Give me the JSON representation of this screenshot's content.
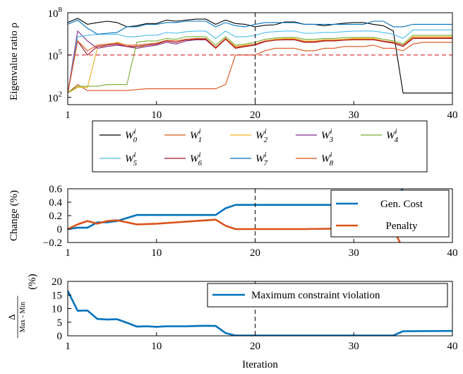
{
  "chart_data": [
    {
      "type": "line",
      "ylabel": "Eigenvalue ratio ρ",
      "yscale": "log",
      "ylim": [
        30,
        100000000
      ],
      "xlim": [
        1,
        40
      ],
      "xticks": [
        1,
        10,
        20,
        30,
        40
      ],
      "yticks": [
        {
          "value": 100,
          "base": "10",
          "exp": "2"
        },
        {
          "value": 100000,
          "base": "10",
          "exp": "5"
        },
        {
          "value": 100000000,
          "base": "10",
          "exp": "8"
        }
      ],
      "threshold": {
        "value": 100000,
        "color": "#d62728",
        "style": "dashed"
      },
      "vline": 20,
      "legend": {
        "placement": "below",
        "columns": 5
      },
      "x": [
        1,
        2,
        3,
        4,
        5,
        6,
        7,
        8,
        9,
        10,
        11,
        12,
        13,
        14,
        15,
        16,
        17,
        18,
        19,
        20,
        21,
        22,
        23,
        24,
        25,
        26,
        27,
        28,
        29,
        30,
        31,
        32,
        33,
        34,
        35,
        36,
        37,
        38,
        39,
        40
      ],
      "series": [
        {
          "name": "W",
          "sub": "0",
          "sup": "i",
          "color": "#000000",
          "values": [
            20000000.0,
            40000000.0,
            15000000.0,
            20000000.0,
            25000000.0,
            20000000.0,
            10000000.0,
            12000000.0,
            17000000.0,
            17000000.0,
            30000000.0,
            25000000.0,
            30000000.0,
            35000000.0,
            35000000.0,
            15000000.0,
            30000000.0,
            17000000.0,
            15000000.0,
            10000000.0,
            13000000.0,
            14000000.0,
            22000000.0,
            22000000.0,
            15000000.0,
            15000000.0,
            12000000.0,
            15000000.0,
            18000000.0,
            20000000.0,
            20000000.0,
            15000000.0,
            12000000.0,
            5000000.0,
            200,
            200,
            200,
            200,
            200,
            200
          ]
        },
        {
          "name": "W",
          "sub": "1",
          "sup": "i",
          "color": "#d95319",
          "values": [
            200,
            800,
            300,
            300,
            300,
            300,
            300,
            350,
            400,
            400,
            400,
            400,
            400,
            400,
            400,
            400,
            800,
            100000.0,
            100000.0,
            100000.0,
            200000.0,
            300000.0,
            300000.0,
            300000.0,
            200000.0,
            200000.0,
            300000.0,
            300000.0,
            400000.0,
            400000.0,
            400000.0,
            500000.0,
            300000.0,
            300000.0,
            200000.0,
            600000.0,
            800000.0,
            800000.0,
            800000.0,
            800000.0
          ]
        },
        {
          "name": "W",
          "sub": "2",
          "sup": "i",
          "color": "#edb120",
          "values": [
            200,
            500,
            500,
            300000.0,
            500000.0,
            800000.0,
            500000.0,
            300000.0,
            500000.0,
            600000.0,
            1000000.0,
            800000.0,
            1200000.0,
            1500000.0,
            1500000.0,
            300000.0,
            1500000.0,
            400000.0,
            500000.0,
            600000.0,
            1000000.0,
            1300000.0,
            1500000.0,
            1500000.0,
            1000000.0,
            1000000.0,
            1200000.0,
            1200000.0,
            1300000.0,
            1500000.0,
            1500000.0,
            1500000.0,
            1000000.0,
            800000.0,
            500000.0,
            2000000.0,
            2000000.0,
            2000000.0,
            2000000.0,
            2000000.0
          ]
        },
        {
          "name": "W",
          "sub": "3",
          "sup": "i",
          "color": "#7e2f8e",
          "values": [
            200,
            5000000.0,
            1000000.0,
            300000.0,
            400000.0,
            500000.0,
            400000.0,
            300000.0,
            400000.0,
            500000.0,
            800000.0,
            600000.0,
            1000000.0,
            1200000.0,
            1200000.0,
            300000.0,
            1500000.0,
            300000.0,
            400000.0,
            500000.0,
            900000.0,
            1200000.0,
            1200000.0,
            1200000.0,
            800000.0,
            800000.0,
            1000000.0,
            1000000.0,
            1200000.0,
            1300000.0,
            1300000.0,
            1300000.0,
            900000.0,
            700000.0,
            400000.0,
            1500000.0,
            1500000.0,
            1500000.0,
            1500000.0,
            1500000.0
          ]
        },
        {
          "name": "W",
          "sub": "4",
          "sup": "i",
          "color": "#77ac30",
          "values": [
            200,
            600,
            600,
            600,
            800,
            800,
            800,
            800000.0,
            1000000.0,
            1000000.0,
            1500000.0,
            1300000.0,
            2000000.0,
            2000000.0,
            2000000.0,
            500000.0,
            2000000.0,
            500000.0,
            600000.0,
            800000.0,
            1300000.0,
            1600000.0,
            1800000.0,
            1800000.0,
            1300000.0,
            1300000.0,
            1500000.0,
            1500000.0,
            1700000.0,
            1800000.0,
            1800000.0,
            1800000.0,
            1300000.0,
            1000000.0,
            600000.0,
            2500000.0,
            2500000.0,
            2500000.0,
            2500000.0,
            2500000.0
          ]
        },
        {
          "name": "W",
          "sub": "5",
          "sup": "i",
          "color": "#4dbeee",
          "values": [
            200,
            2000000.0,
            2500000.0,
            3000000.0,
            3000000.0,
            3000000.0,
            2000000.0,
            2000000.0,
            2500000.0,
            2500000.0,
            4000000.0,
            3500000.0,
            4500000.0,
            5000000.0,
            5000000.0,
            1500000.0,
            5000000.0,
            2000000.0,
            2000000.0,
            2500000.0,
            4000000.0,
            4500000.0,
            5000000.0,
            5000000.0,
            3500000.0,
            3500000.0,
            4000000.0,
            4000000.0,
            4500000.0,
            5000000.0,
            5000000.0,
            5000000.0,
            4000000.0,
            3000000.0,
            1500000.0,
            6000000.0,
            6000000.0,
            6000000.0,
            6000000.0,
            6000000.0
          ]
        },
        {
          "name": "W",
          "sub": "6",
          "sup": "i",
          "color": "#a2142f",
          "values": [
            200,
            1000000.0,
            100000.0,
            400000.0,
            500000.0,
            600000.0,
            400000.0,
            400000.0,
            500000.0,
            600000.0,
            1000000.0,
            800000.0,
            1200000.0,
            1300000.0,
            1300000.0,
            300000.0,
            1300000.0,
            300000.0,
            400000.0,
            500000.0,
            900000.0,
            1100000.0,
            1200000.0,
            1200000.0,
            800000.0,
            800000.0,
            1000000.0,
            1000000.0,
            1100000.0,
            1200000.0,
            1200000.0,
            1200000.0,
            900000.0,
            700000.0,
            400000.0,
            1500000.0,
            1500000.0,
            1500000.0,
            1500000.0,
            1500000.0
          ]
        },
        {
          "name": "W",
          "sub": "7",
          "sup": "i",
          "color": "#0072bd",
          "values": [
            15000000.0,
            30000000.0,
            8000000.0,
            3000000.0,
            3500000.0,
            4000000.0,
            10000000.0,
            10000000.0,
            15000000.0,
            15000000.0,
            20000000.0,
            20000000.0,
            25000000.0,
            25000000.0,
            25000000.0,
            10000000.0,
            20000000.0,
            12000000.0,
            10000000.0,
            15000000.0,
            20000000.0,
            20000000.0,
            20000000.0,
            20000000.0,
            15000000.0,
            15000000.0,
            15000000.0,
            15000000.0,
            15000000.0,
            15000000.0,
            15000000.0,
            25000000.0,
            25000000.0,
            10000000.0,
            10000000.0,
            15000000.0,
            15000000.0,
            15000000.0,
            15000000.0,
            15000000.0
          ]
        },
        {
          "name": "W",
          "sub": "8",
          "sup": "i",
          "color": "#d95319",
          "values": [
            200,
            1000000.0,
            200000.0,
            500000.0,
            600000.0,
            700000.0,
            500000.0,
            500000.0,
            600000.0,
            700000.0,
            1100000.0,
            1000000.0,
            1300000.0,
            1500000.0,
            1500000.0,
            350000.0,
            1500000.0,
            350000.0,
            450000.0,
            600000.0,
            1000000.0,
            1200000.0,
            1300000.0,
            1300000.0,
            900000.0,
            900000.0,
            1100000.0,
            1100000.0,
            1200000.0,
            1300000.0,
            1300000.0,
            1300000.0,
            1000000.0,
            800000.0,
            500000.0,
            1700000.0,
            1700000.0,
            1700000.0,
            1700000.0,
            1700000.0
          ]
        }
      ]
    },
    {
      "type": "line",
      "ylabel": "Change (%)",
      "ylim": [
        -0.2,
        0.6
      ],
      "xlim": [
        1,
        40
      ],
      "xticks": [
        1,
        10,
        20,
        30,
        40
      ],
      "yticks": [
        "−0.2",
        "0",
        "0.2",
        "0.4",
        "0.6"
      ],
      "ytickvalues": [
        -0.2,
        0,
        0.2,
        0.4,
        0.6
      ],
      "vline": 20,
      "legend": {
        "placement": "top-right"
      },
      "series": [
        {
          "name": "Gen. Cost",
          "color": "#0072bd",
          "x": [
            1,
            2,
            3,
            4,
            5,
            6,
            8,
            10,
            12,
            14,
            16,
            17,
            18,
            20,
            25,
            30,
            34,
            35,
            40
          ],
          "y": [
            0,
            0.02,
            0.02,
            0.1,
            0.1,
            0.12,
            0.21,
            0.21,
            0.21,
            0.21,
            0.21,
            0.31,
            0.36,
            0.36,
            0.36,
            0.36,
            0.36,
            0.62,
            0.62
          ]
        },
        {
          "name": "Penalty",
          "color": "#d95319",
          "x": [
            1,
            2,
            3,
            4,
            5,
            6,
            8,
            10,
            12,
            14,
            16,
            17,
            18,
            20,
            25,
            30,
            34,
            35,
            40
          ],
          "y": [
            0,
            0.07,
            0.12,
            0.08,
            0.12,
            0.13,
            0.07,
            0.08,
            0.1,
            0.12,
            0.14,
            0.05,
            0,
            0,
            0,
            0.01,
            0.01,
            -0.3,
            -0.3
          ]
        }
      ]
    },
    {
      "type": "line",
      "ylabel_top": "Δ",
      "ylabel_bottom": "Max - Min",
      "ylabel_unit": "(%)",
      "xlabel": "Iteration",
      "ylim": [
        0,
        20
      ],
      "xlim": [
        1,
        40
      ],
      "xticks": [
        1,
        10,
        20,
        30,
        40
      ],
      "yticks": [
        0,
        5,
        10,
        15,
        20
      ],
      "vline": 20,
      "legend": {
        "placement": "top-right"
      },
      "series": [
        {
          "name": "Maximum constraint violation",
          "color": "#0072bd",
          "x": [
            1,
            2,
            3,
            4,
            5,
            6,
            7,
            8,
            9,
            10,
            11,
            12,
            13,
            14,
            15,
            16,
            17,
            18,
            20,
            25,
            30,
            34,
            35,
            40
          ],
          "y": [
            16.5,
            9.2,
            9.3,
            6.2,
            6.0,
            6.1,
            4.8,
            3.4,
            3.5,
            3.3,
            3.5,
            3.5,
            3.5,
            3.6,
            3.7,
            3.6,
            1.0,
            0.1,
            0.1,
            0.1,
            0.1,
            0.1,
            1.7,
            1.8
          ]
        }
      ]
    }
  ]
}
